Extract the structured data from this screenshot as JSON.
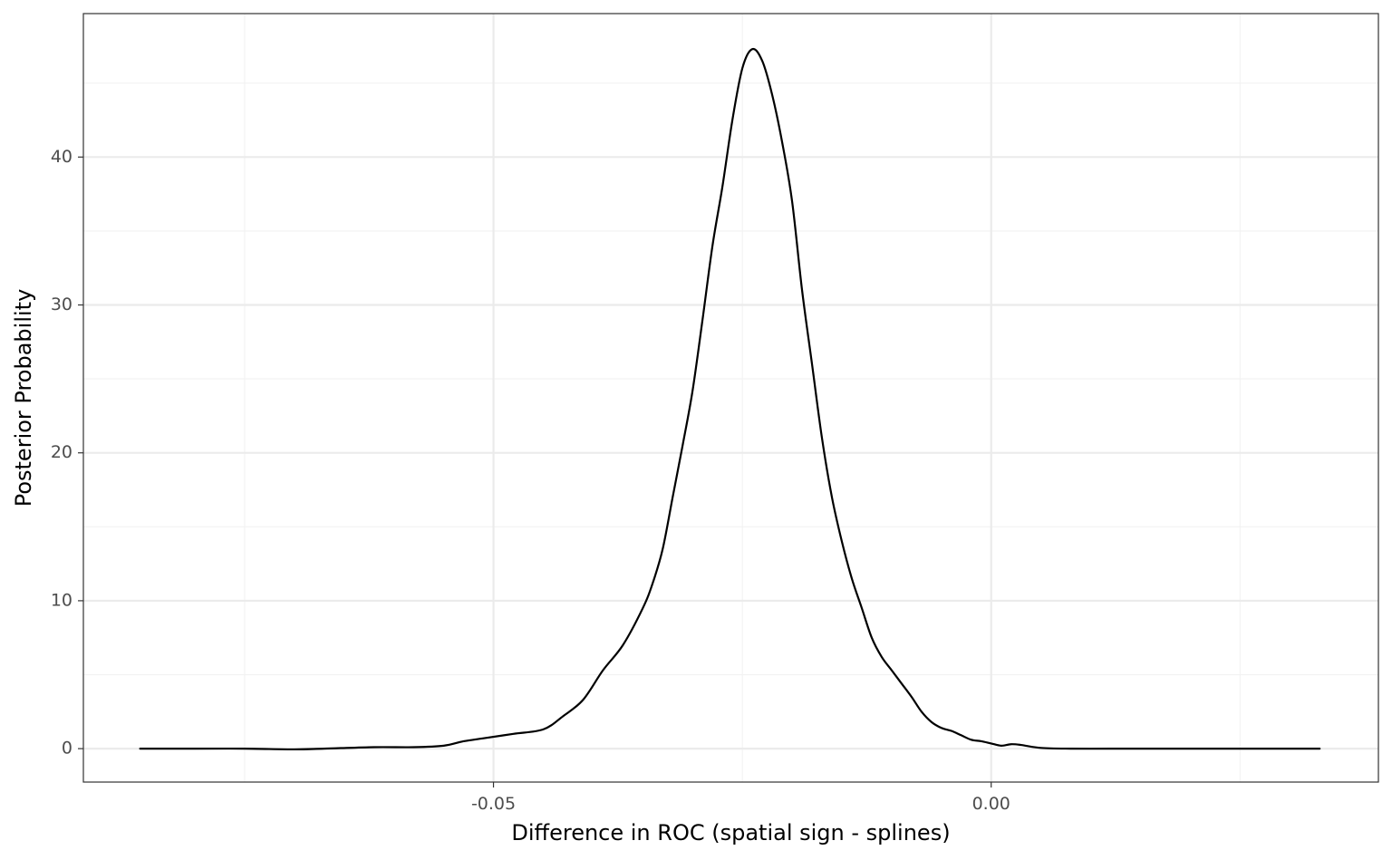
{
  "chart_data": {
    "type": "line",
    "xlabel": "Difference in ROC (spatial sign - splines)",
    "ylabel": "Posterior Probability",
    "xlim": [
      -0.0912,
      0.0389
    ],
    "ylim": [
      -2.26,
      49.7
    ],
    "x_ticks": [
      -0.05,
      0.0
    ],
    "x_tick_labels": [
      "-0.05",
      "0.00"
    ],
    "x_minor_ticks": [
      -0.075,
      -0.025,
      0.025
    ],
    "y_ticks": [
      0,
      10,
      20,
      30,
      40
    ],
    "y_tick_labels": [
      "0",
      "10",
      "20",
      "30",
      "40"
    ],
    "y_minor_ticks": [
      5,
      15,
      25,
      35,
      45
    ],
    "grid": true,
    "theme": "bw",
    "colors": {
      "line": "#000000",
      "major_grid": "#ebebeb",
      "minor_grid": "#f2f2f2",
      "panel_border": "#333333",
      "tick_text": "#4d4d4d"
    },
    "series": [
      {
        "x": [
          -0.0855,
          -0.08,
          -0.075,
          -0.07,
          -0.067,
          -0.062,
          -0.058,
          -0.055,
          -0.053,
          -0.051,
          -0.048,
          -0.045,
          -0.043,
          -0.041,
          -0.039,
          -0.037,
          -0.035,
          -0.034,
          -0.033,
          -0.032,
          -0.031,
          -0.03,
          -0.029,
          -0.028,
          -0.027,
          -0.026,
          -0.025,
          -0.024,
          -0.023,
          -0.022,
          -0.021,
          -0.02,
          -0.019,
          -0.018,
          -0.017,
          -0.016,
          -0.015,
          -0.014,
          -0.013,
          -0.012,
          -0.011,
          -0.01,
          -0.009,
          -0.008,
          -0.007,
          -0.006,
          -0.005,
          -0.004,
          -0.003,
          -0.002,
          -0.001,
          0.0,
          0.001,
          0.002,
          0.003,
          0.005,
          0.008,
          0.012,
          0.015,
          0.018,
          0.021,
          0.025,
          0.03,
          0.033
        ],
        "y": [
          0.0,
          0.0,
          0.0,
          -0.05,
          0.0,
          0.1,
          0.1,
          0.2,
          0.5,
          0.7,
          1.0,
          1.3,
          2.2,
          3.3,
          5.3,
          7.0,
          9.5,
          11.2,
          13.5,
          17.0,
          20.5,
          24.2,
          29.0,
          34.0,
          38.0,
          42.5,
          46.0,
          47.3,
          46.5,
          44.2,
          41.0,
          37.0,
          31.0,
          26.0,
          21.0,
          17.0,
          14.0,
          11.5,
          9.5,
          7.5,
          6.2,
          5.3,
          4.4,
          3.5,
          2.5,
          1.8,
          1.4,
          1.2,
          0.9,
          0.6,
          0.5,
          0.35,
          0.2,
          0.3,
          0.25,
          0.05,
          0.0,
          0.0,
          0.0,
          0.0,
          0.0,
          0.0,
          0.0,
          0.0
        ]
      }
    ]
  }
}
